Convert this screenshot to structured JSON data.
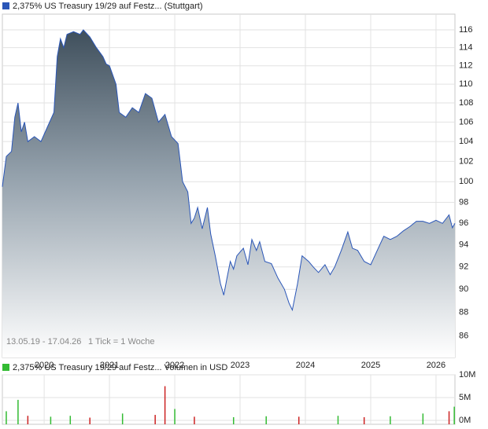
{
  "chart_data": [
    {
      "type": "area",
      "title": "2,375% US Treasury 19/29 auf Festz... (Stuttgart)",
      "annotations": [
        "13.05.19 - 17.04.26",
        "1 Tick = 1 Woche"
      ],
      "log_scale": true,
      "grid": true,
      "color": "#2a56b8",
      "x": [
        2019.36,
        2019.42,
        2019.5,
        2019.55,
        2019.6,
        2019.65,
        2019.7,
        2019.75,
        2019.85,
        2019.95,
        2020.05,
        2020.15,
        2020.2,
        2020.25,
        2020.3,
        2020.35,
        2020.45,
        2020.55,
        2020.6,
        2020.7,
        2020.8,
        2020.9,
        2020.95,
        2021.0,
        2021.1,
        2021.15,
        2021.25,
        2021.35,
        2021.45,
        2021.55,
        2021.65,
        2021.75,
        2021.85,
        2021.95,
        2022.05,
        2022.12,
        2022.2,
        2022.25,
        2022.3,
        2022.35,
        2022.42,
        2022.5,
        2022.55,
        2022.62,
        2022.7,
        2022.75,
        2022.8,
        2022.85,
        2022.9,
        2022.95,
        2023.05,
        2023.12,
        2023.18,
        2023.25,
        2023.3,
        2023.38,
        2023.48,
        2023.58,
        2023.68,
        2023.75,
        2023.8,
        2023.88,
        2023.95,
        2024.05,
        2024.12,
        2024.2,
        2024.3,
        2024.38,
        2024.45,
        2024.55,
        2024.65,
        2024.72,
        2024.8,
        2024.9,
        2025.0,
        2025.1,
        2025.2,
        2025.3,
        2025.4,
        2025.5,
        2025.6,
        2025.7,
        2025.8,
        2025.9,
        2026.0,
        2026.1,
        2026.2,
        2026.25,
        2026.29
      ],
      "values": [
        99.5,
        102.5,
        103,
        106.5,
        108,
        105,
        106,
        104,
        104.5,
        104,
        105.5,
        107,
        113,
        115,
        114,
        115.5,
        115.8,
        115.5,
        116,
        115.2,
        114,
        113,
        112.2,
        112,
        110,
        107,
        106.5,
        107.5,
        107,
        109,
        108.5,
        106,
        106.8,
        104.5,
        103.8,
        100,
        99,
        96,
        96.5,
        97.5,
        95.5,
        97.5,
        95,
        93,
        90.5,
        89.5,
        91,
        92.5,
        91.8,
        93,
        93.7,
        92.2,
        94.5,
        93.5,
        94.3,
        92.5,
        92.3,
        91,
        90,
        88.8,
        88.2,
        90.5,
        93,
        92.5,
        92,
        91.5,
        92.2,
        91.3,
        92,
        93.5,
        95.2,
        93.7,
        93.5,
        92.5,
        92.2,
        93.5,
        94.8,
        94.5,
        94.8,
        95.3,
        95.7,
        96.2,
        96.2,
        96,
        96.3,
        96,
        96.8,
        95.6,
        96
      ],
      "xlim": [
        2019.36,
        2026.29
      ],
      "xticks": [
        2020,
        2021,
        2022,
        2023,
        2024,
        2025,
        2026
      ],
      "ylim": [
        84.2,
        117.8
      ],
      "yticks": [
        86,
        88,
        90,
        92,
        94,
        96,
        98,
        100,
        102,
        104,
        106,
        108,
        110,
        112,
        114,
        116
      ]
    },
    {
      "type": "bar",
      "title": "2,375% US Treasury 19/29 auf Festz... Volumen in USD",
      "color": "#33bb33",
      "grid": true,
      "x": [
        2019.42,
        2019.6,
        2019.75,
        2020.1,
        2020.4,
        2020.7,
        2021.2,
        2021.7,
        2021.85,
        2022.0,
        2022.3,
        2022.9,
        2023.4,
        2023.9,
        2024.5,
        2024.9,
        2025.3,
        2025.8,
        2026.2,
        2026.28
      ],
      "values": [
        2,
        4.5,
        1,
        0.8,
        1,
        0.6,
        1.5,
        1.2,
        7.5,
        2.5,
        0.8,
        0.7,
        0.9,
        0.8,
        1,
        0.7,
        0.9,
        1.5,
        2,
        3
      ],
      "colors": [
        "#33bb33",
        "#33bb33",
        "#cc2222",
        "#33bb33",
        "#33bb33",
        "#cc2222",
        "#33bb33",
        "#cc2222",
        "#cc2222",
        "#33bb33",
        "#cc2222",
        "#33bb33",
        "#33bb33",
        "#cc2222",
        "#33bb33",
        "#cc2222",
        "#33bb33",
        "#33bb33",
        "#cc2222",
        "#33bb33"
      ],
      "xlim": [
        2019.36,
        2026.29
      ],
      "xticks": [
        2020,
        2021,
        2022,
        2023,
        2024,
        2025,
        2026
      ],
      "ylim": [
        0,
        10
      ],
      "yticks": [
        {
          "value": 0,
          "label": "0M"
        },
        {
          "value": 5,
          "label": "5M"
        },
        {
          "value": 10,
          "label": "10M"
        }
      ]
    }
  ]
}
